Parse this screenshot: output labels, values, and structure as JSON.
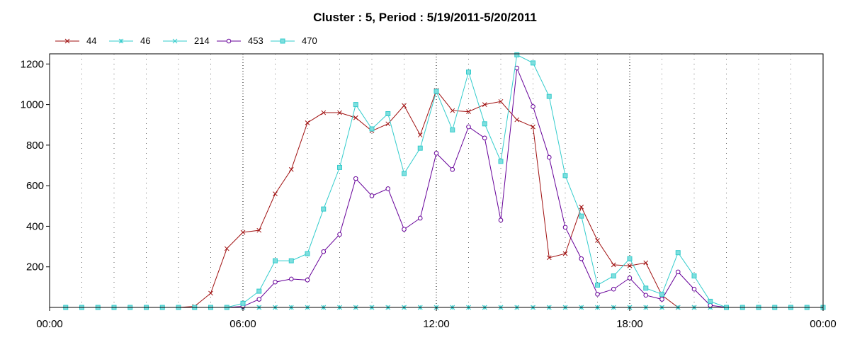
{
  "chart_data": {
    "type": "line",
    "title": "Cluster : 5, Period : 5/19/2011-5/20/2011",
    "xlabel": "",
    "ylabel": "",
    "x_tick_labels": [
      "00:00",
      "06:00",
      "12:00",
      "18:00",
      "00:00"
    ],
    "y_ticks": [
      200,
      400,
      600,
      800,
      1000,
      1200
    ],
    "ylim": [
      0,
      1250
    ],
    "xlim_hours": [
      0,
      24
    ],
    "grid": "dotted vertical lines every hour, y gridlines hidden",
    "legend_position": "top-left",
    "series": [
      {
        "name": "44",
        "color": "#a01010",
        "marker": "x",
        "values": [
          [
            0.5,
            0
          ],
          [
            1,
            0
          ],
          [
            1.5,
            0
          ],
          [
            2,
            0
          ],
          [
            2.5,
            0
          ],
          [
            3,
            0
          ],
          [
            3.5,
            0
          ],
          [
            4,
            0
          ],
          [
            4.5,
            5
          ],
          [
            5,
            70
          ],
          [
            5.5,
            290
          ],
          [
            6,
            370
          ],
          [
            6.5,
            380
          ],
          [
            7,
            560
          ],
          [
            7.5,
            680
          ],
          [
            8,
            910
          ],
          [
            8.5,
            960
          ],
          [
            9,
            960
          ],
          [
            9.5,
            935
          ],
          [
            10,
            870
          ],
          [
            10.5,
            905
          ],
          [
            11,
            995
          ],
          [
            11.5,
            850
          ],
          [
            12,
            1070
          ],
          [
            12.5,
            970
          ],
          [
            13,
            965
          ],
          [
            13.5,
            1000
          ],
          [
            14,
            1015
          ],
          [
            14.5,
            925
          ],
          [
            15,
            890
          ],
          [
            15.5,
            245
          ],
          [
            16,
            265
          ],
          [
            16.5,
            495
          ],
          [
            17,
            330
          ],
          [
            17.5,
            210
          ],
          [
            18,
            205
          ],
          [
            18.5,
            220
          ],
          [
            19,
            60
          ],
          [
            19.5,
            0
          ],
          [
            20,
            0
          ]
        ]
      },
      {
        "name": "46",
        "color": "#33cccc",
        "marker": "*",
        "values": [
          [
            0.5,
            0
          ],
          [
            1,
            0
          ],
          [
            1.5,
            0
          ],
          [
            2,
            0
          ],
          [
            2.5,
            0
          ],
          [
            3,
            0
          ],
          [
            3.5,
            0
          ],
          [
            4,
            0
          ],
          [
            4.5,
            0
          ],
          [
            5,
            0
          ],
          [
            5.5,
            0
          ],
          [
            6,
            0
          ],
          [
            6.5,
            0
          ],
          [
            7,
            0
          ],
          [
            7.5,
            0
          ],
          [
            8,
            0
          ],
          [
            8.5,
            0
          ],
          [
            9,
            0
          ],
          [
            9.5,
            0
          ],
          [
            10,
            0
          ],
          [
            10.5,
            0
          ],
          [
            11,
            0
          ],
          [
            11.5,
            0
          ],
          [
            12,
            0
          ],
          [
            12.5,
            0
          ],
          [
            13,
            0
          ],
          [
            13.5,
            0
          ],
          [
            14,
            0
          ],
          [
            14.5,
            0
          ],
          [
            15,
            0
          ],
          [
            15.5,
            0
          ],
          [
            16,
            0
          ],
          [
            16.5,
            0
          ],
          [
            17,
            0
          ],
          [
            17.5,
            0
          ],
          [
            18,
            0
          ],
          [
            18.5,
            0
          ],
          [
            19,
            0
          ],
          [
            19.5,
            0
          ],
          [
            20,
            0
          ],
          [
            20.5,
            0
          ],
          [
            21,
            0
          ],
          [
            21.5,
            0
          ],
          [
            22,
            0
          ],
          [
            22.5,
            0
          ],
          [
            23,
            0
          ],
          [
            23.5,
            0
          ],
          [
            24,
            0
          ]
        ]
      },
      {
        "name": "214",
        "color": "#33cccc",
        "marker": "x",
        "values": [
          [
            0.5,
            0
          ],
          [
            1,
            0
          ],
          [
            1.5,
            0
          ],
          [
            2,
            0
          ],
          [
            2.5,
            0
          ],
          [
            3,
            0
          ],
          [
            3.5,
            0
          ],
          [
            4,
            0
          ],
          [
            4.5,
            0
          ],
          [
            5,
            0
          ],
          [
            5.5,
            0
          ],
          [
            6,
            0
          ],
          [
            6.5,
            0
          ],
          [
            7,
            0
          ],
          [
            7.5,
            0
          ],
          [
            8,
            0
          ],
          [
            8.5,
            0
          ],
          [
            9,
            0
          ],
          [
            9.5,
            0
          ],
          [
            10,
            0
          ],
          [
            10.5,
            0
          ],
          [
            11,
            0
          ],
          [
            11.5,
            0
          ],
          [
            12,
            0
          ],
          [
            12.5,
            0
          ],
          [
            13,
            0
          ],
          [
            13.5,
            0
          ],
          [
            14,
            0
          ],
          [
            14.5,
            0
          ],
          [
            15,
            0
          ],
          [
            15.5,
            0
          ],
          [
            16,
            0
          ],
          [
            16.5,
            0
          ],
          [
            17,
            0
          ],
          [
            17.5,
            0
          ],
          [
            18,
            0
          ],
          [
            18.5,
            0
          ],
          [
            19,
            0
          ],
          [
            19.5,
            0
          ],
          [
            20,
            0
          ],
          [
            20.5,
            0
          ],
          [
            21,
            0
          ],
          [
            21.5,
            0
          ],
          [
            22,
            0
          ],
          [
            22.5,
            0
          ],
          [
            23,
            0
          ],
          [
            23.5,
            0
          ],
          [
            24,
            0
          ]
        ]
      },
      {
        "name": "453",
        "color": "#660099",
        "marker": "circle",
        "values": [
          [
            5.5,
            0
          ],
          [
            6,
            5
          ],
          [
            6.5,
            40
          ],
          [
            7,
            125
          ],
          [
            7.5,
            140
          ],
          [
            8,
            135
          ],
          [
            8.5,
            275
          ],
          [
            9,
            360
          ],
          [
            9.5,
            635
          ],
          [
            10,
            550
          ],
          [
            10.5,
            585
          ],
          [
            11,
            385
          ],
          [
            11.5,
            440
          ],
          [
            12,
            760
          ],
          [
            12.5,
            680
          ],
          [
            13,
            890
          ],
          [
            13.5,
            835
          ],
          [
            14,
            430
          ],
          [
            14.5,
            1180
          ],
          [
            15,
            990
          ],
          [
            15.5,
            740
          ],
          [
            16,
            395
          ],
          [
            16.5,
            240
          ],
          [
            17,
            65
          ],
          [
            17.5,
            90
          ],
          [
            18,
            145
          ],
          [
            18.5,
            60
          ],
          [
            19,
            40
          ],
          [
            19.5,
            175
          ],
          [
            20,
            90
          ],
          [
            20.5,
            10
          ],
          [
            21,
            0
          ]
        ]
      },
      {
        "name": "470",
        "color": "#33cccc",
        "marker": "square",
        "values": [
          [
            0.5,
            0
          ],
          [
            1,
            0
          ],
          [
            1.5,
            0
          ],
          [
            2,
            0
          ],
          [
            2.5,
            0
          ],
          [
            3,
            0
          ],
          [
            3.5,
            0
          ],
          [
            4,
            0
          ],
          [
            4.5,
            0
          ],
          [
            5,
            0
          ],
          [
            5.5,
            0
          ],
          [
            6,
            20
          ],
          [
            6.5,
            80
          ],
          [
            7,
            230
          ],
          [
            7.5,
            230
          ],
          [
            8,
            265
          ],
          [
            8.5,
            485
          ],
          [
            9,
            690
          ],
          [
            9.5,
            1000
          ],
          [
            10,
            880
          ],
          [
            10.5,
            955
          ],
          [
            11,
            660
          ],
          [
            11.5,
            785
          ],
          [
            12,
            1065
          ],
          [
            12.5,
            875
          ],
          [
            13,
            1160
          ],
          [
            13.5,
            905
          ],
          [
            14,
            720
          ],
          [
            14.5,
            1245
          ],
          [
            15,
            1205
          ],
          [
            15.5,
            1040
          ],
          [
            16,
            650
          ],
          [
            16.5,
            450
          ],
          [
            17,
            110
          ],
          [
            17.5,
            155
          ],
          [
            18,
            240
          ],
          [
            18.5,
            95
          ],
          [
            19,
            65
          ],
          [
            19.5,
            270
          ],
          [
            20,
            155
          ],
          [
            20.5,
            30
          ],
          [
            21,
            0
          ],
          [
            21.5,
            0
          ],
          [
            22,
            0
          ],
          [
            22.5,
            0
          ],
          [
            23,
            0
          ],
          [
            23.5,
            0
          ],
          [
            24,
            0
          ]
        ]
      }
    ]
  }
}
